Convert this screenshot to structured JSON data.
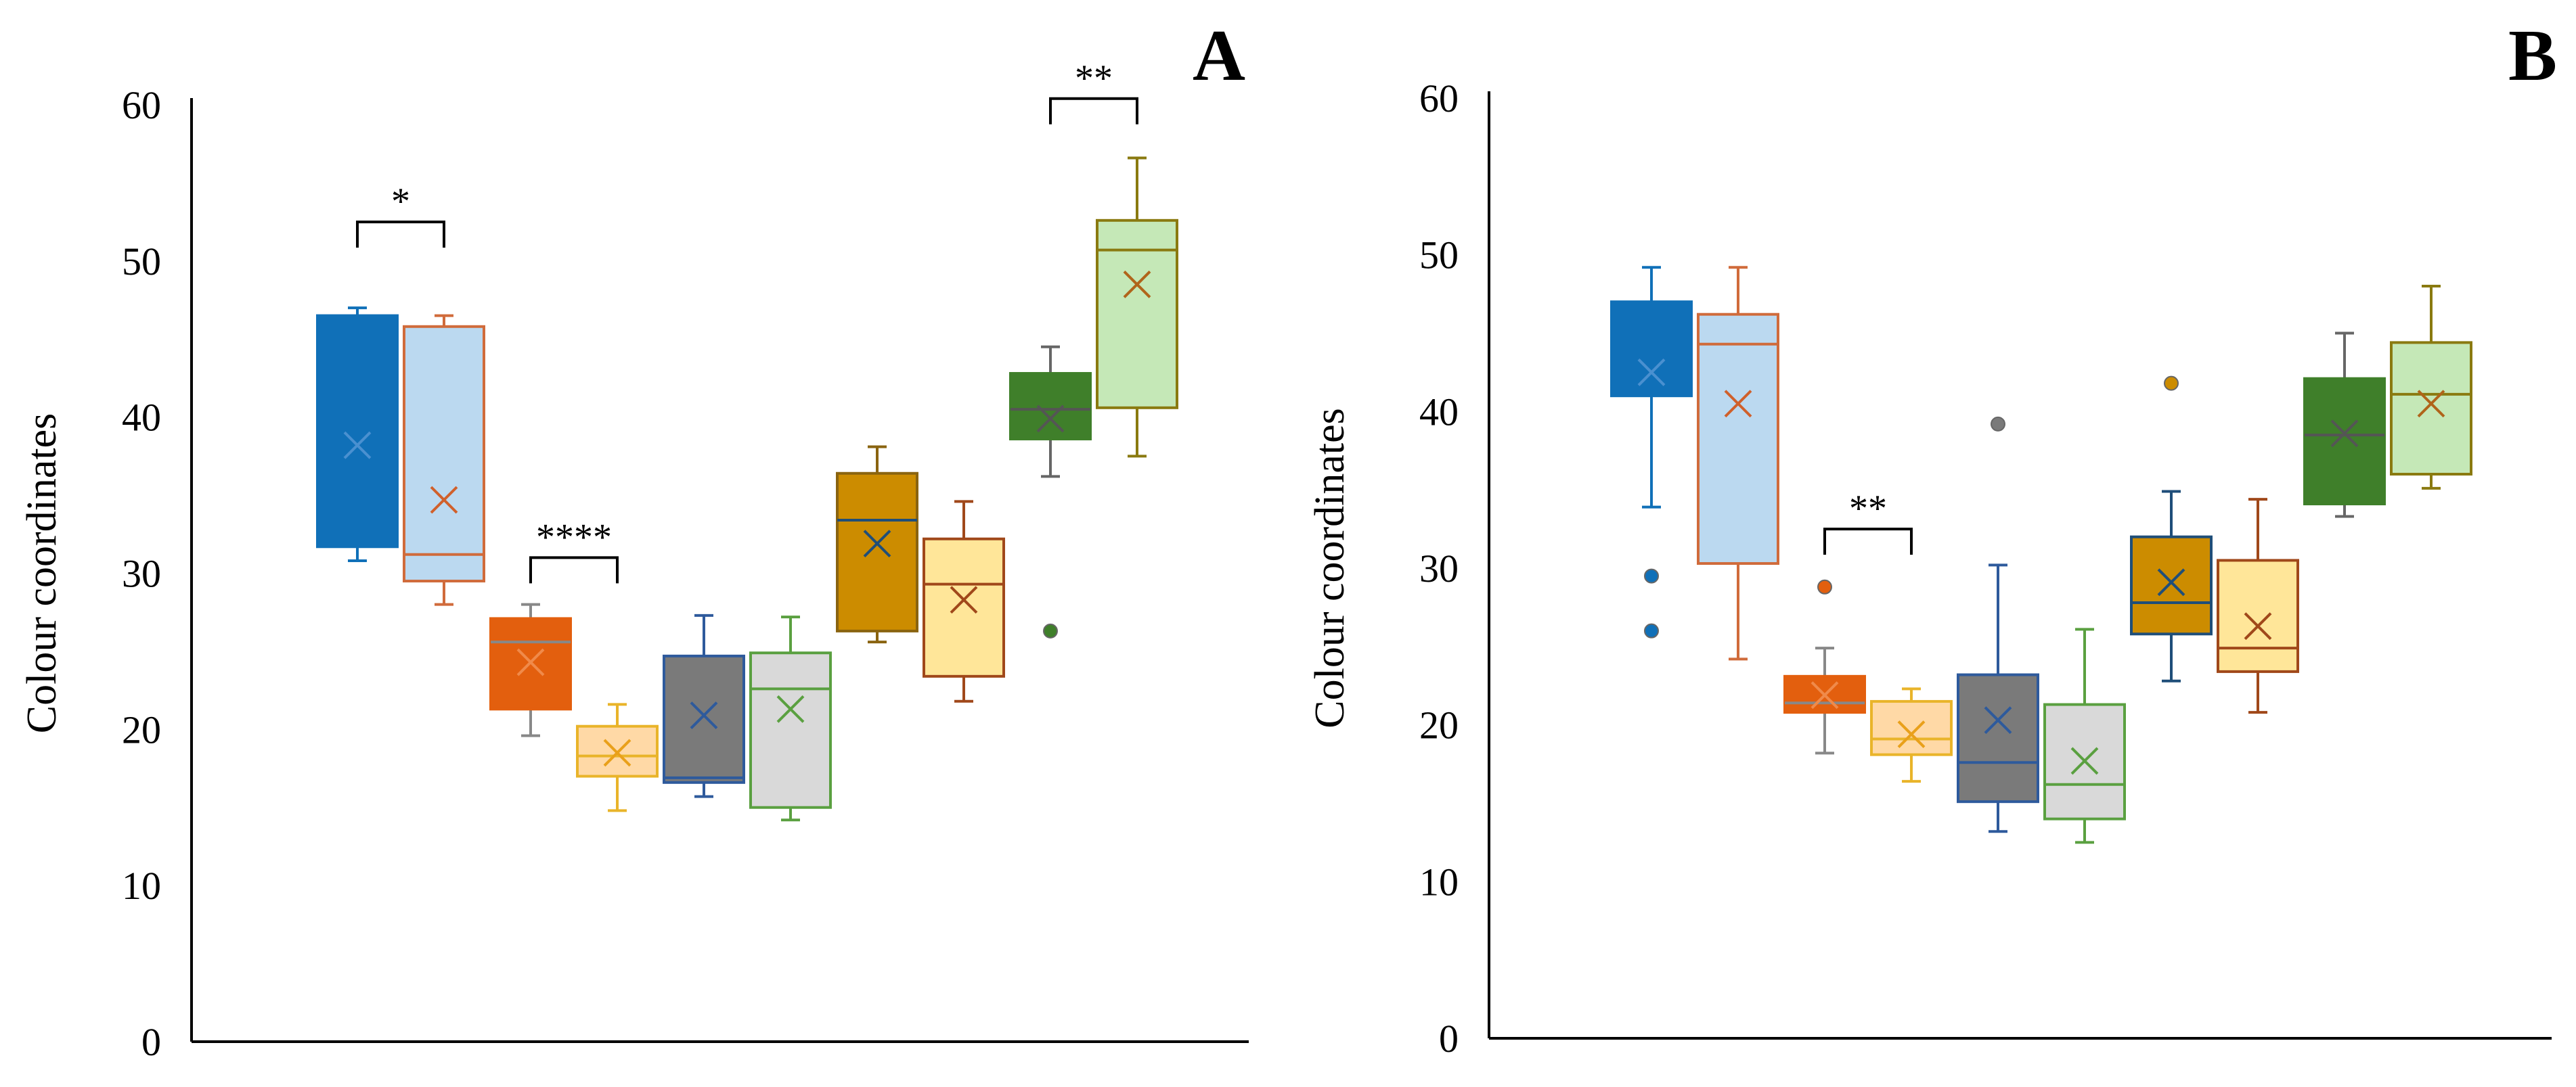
{
  "chart_data": [
    {
      "type": "boxplot",
      "panel": "A",
      "ylabel": "Colour coordinates",
      "ylim": [
        0,
        60
      ],
      "yticks": [
        0,
        10,
        20,
        30,
        40,
        50,
        60
      ],
      "grid": false,
      "groups": [
        {
          "fill": "#1070B8",
          "stroke": "#1070B8",
          "whisker": "#1070B8",
          "median_color": "#1070B8",
          "mean_color": "#4A90D0",
          "whisker_low": 30.8,
          "q1": 31.7,
          "median": 46.0,
          "q3": 46.5,
          "whisker_high": 47.0,
          "mean": 38.2,
          "outliers": []
        },
        {
          "fill": "#BBD9F0",
          "stroke": "#D06B3B",
          "whisker": "#D06B3B",
          "median_color": "#D06B3B",
          "mean_color": "#D0602B",
          "whisker_low": 28.0,
          "q1": 29.5,
          "median": 31.2,
          "q3": 45.8,
          "whisker_high": 46.5,
          "mean": 34.7,
          "outliers": []
        },
        {
          "fill": "#E35F0E",
          "stroke": "#E35F0E",
          "whisker": "#888888",
          "median_color": "#888888",
          "mean_color": "#F08A4A",
          "whisker_low": 19.6,
          "q1": 21.3,
          "median": 25.6,
          "q3": 27.1,
          "whisker_high": 28.0,
          "mean": 24.3,
          "outliers": []
        },
        {
          "fill": "#FFD9A6",
          "stroke": "#E9B42A",
          "whisker": "#E9B42A",
          "median_color": "#E9B42A",
          "mean_color": "#E9A01A",
          "whisker_low": 14.8,
          "q1": 17.0,
          "median": 18.3,
          "q3": 20.2,
          "whisker_high": 21.6,
          "mean": 18.5,
          "outliers": []
        },
        {
          "fill": "#7A7A7A",
          "stroke": "#2E5A9C",
          "whisker": "#2E5A9C",
          "median_color": "#2E5A9C",
          "mean_color": "#2E5A9C",
          "whisker_low": 15.7,
          "q1": 16.6,
          "median": 16.9,
          "q3": 24.7,
          "whisker_high": 27.3,
          "mean": 20.9,
          "outliers": []
        },
        {
          "fill": "#D9D9D9",
          "stroke": "#5AA040",
          "whisker": "#5AA040",
          "median_color": "#5AA040",
          "mean_color": "#5AA040",
          "whisker_low": 14.2,
          "q1": 15.0,
          "median": 22.6,
          "q3": 24.9,
          "whisker_high": 27.2,
          "mean": 21.3,
          "outliers": []
        },
        {
          "fill": "#CC8C00",
          "stroke": "#8A6410",
          "whisker": "#8A6410",
          "median_color": "#1F4E79",
          "mean_color": "#1F4E79",
          "whisker_low": 25.6,
          "q1": 26.3,
          "median": 33.4,
          "q3": 36.4,
          "whisker_high": 38.1,
          "mean": 31.9,
          "outliers": []
        },
        {
          "fill": "#FFE699",
          "stroke": "#A0481A",
          "whisker": "#A0481A",
          "median_color": "#A0481A",
          "mean_color": "#A0481A",
          "whisker_low": 21.8,
          "q1": 23.4,
          "median": 29.3,
          "q3": 32.2,
          "whisker_high": 34.6,
          "mean": 28.3,
          "outliers": []
        },
        {
          "fill": "#3F7F2A",
          "stroke": "#3F7F2A",
          "whisker": "#666666",
          "median_color": "#555555",
          "mean_color": "#555555",
          "whisker_low": 36.2,
          "q1": 38.6,
          "median": 40.5,
          "q3": 42.8,
          "whisker_high": 44.5,
          "mean": 39.9,
          "outliers": [
            26.3
          ]
        },
        {
          "fill": "#C5E8B7",
          "stroke": "#8A7A10",
          "whisker": "#8A7A10",
          "median_color": "#8A7A10",
          "mean_color": "#B0641A",
          "whisker_low": 37.5,
          "q1": 40.6,
          "median": 50.7,
          "q3": 52.6,
          "whisker_high": 56.6,
          "mean": 48.5,
          "outliers": []
        }
      ],
      "significance": [
        {
          "from": 0,
          "to": 1,
          "label": "*",
          "y": 52.5
        },
        {
          "from": 2,
          "to": 3,
          "label": "****",
          "y": 31.0
        },
        {
          "from": 8,
          "to": 9,
          "label": "**",
          "y": 60.4
        }
      ]
    },
    {
      "type": "boxplot",
      "panel": "B",
      "ylabel": "Colour coordinates",
      "ylim": [
        0,
        60
      ],
      "yticks": [
        0,
        10,
        20,
        30,
        40,
        50,
        60
      ],
      "grid": false,
      "groups": [
        {
          "fill": "#1070B8",
          "stroke": "#1070B8",
          "whisker": "#1070B8",
          "median_color": "#1070B8",
          "mean_color": "#4A90D0",
          "whisker_low": 33.9,
          "q1": 41.0,
          "median": 44.8,
          "q3": 47.0,
          "whisker_high": 49.2,
          "mean": 42.5,
          "outliers": [
            29.5,
            26.0
          ]
        },
        {
          "fill": "#BBD9F0",
          "stroke": "#D06B3B",
          "whisker": "#D06B3B",
          "median_color": "#D06B3B",
          "mean_color": "#D0602B",
          "whisker_low": 24.2,
          "q1": 30.3,
          "median": 44.3,
          "q3": 46.2,
          "whisker_high": 49.2,
          "mean": 40.5,
          "outliers": []
        },
        {
          "fill": "#E35F0E",
          "stroke": "#E35F0E",
          "whisker": "#888888",
          "median_color": "#888888",
          "mean_color": "#F08A4A",
          "whisker_low": 18.2,
          "q1": 20.8,
          "median": 21.4,
          "q3": 23.1,
          "whisker_high": 24.9,
          "mean": 21.9,
          "outliers": [
            28.8
          ]
        },
        {
          "fill": "#FFD9A6",
          "stroke": "#E9B42A",
          "whisker": "#E9B42A",
          "median_color": "#E9B42A",
          "mean_color": "#E9A01A",
          "whisker_low": 16.4,
          "q1": 18.1,
          "median": 19.1,
          "q3": 21.5,
          "whisker_high": 22.3,
          "mean": 19.4,
          "outliers": []
        },
        {
          "fill": "#7A7A7A",
          "stroke": "#2E5A9C",
          "whisker": "#2E5A9C",
          "median_color": "#2E5A9C",
          "mean_color": "#2E5A9C",
          "whisker_low": 13.2,
          "q1": 15.1,
          "median": 17.6,
          "q3": 23.2,
          "whisker_high": 30.2,
          "mean": 20.3,
          "outliers": [
            39.2
          ]
        },
        {
          "fill": "#D9D9D9",
          "stroke": "#5AA040",
          "whisker": "#5AA040",
          "median_color": "#5AA040",
          "mean_color": "#5AA040",
          "whisker_low": 12.5,
          "q1": 14.0,
          "median": 16.2,
          "q3": 21.3,
          "whisker_high": 26.1,
          "mean": 17.7,
          "outliers": []
        },
        {
          "fill": "#CC8C00",
          "stroke": "#1F4E79",
          "whisker": "#1F4E79",
          "median_color": "#1F4E79",
          "mean_color": "#1F4E79",
          "whisker_low": 22.8,
          "q1": 25.8,
          "median": 27.8,
          "q3": 32.0,
          "whisker_high": 34.9,
          "mean": 29.1,
          "outliers": [
            41.8
          ]
        },
        {
          "fill": "#FFE699",
          "stroke": "#A0481A",
          "whisker": "#A0481A",
          "median_color": "#A0481A",
          "mean_color": "#A0481A",
          "whisker_low": 20.8,
          "q1": 23.4,
          "median": 24.9,
          "q3": 30.5,
          "whisker_high": 34.4,
          "mean": 26.3,
          "outliers": []
        },
        {
          "fill": "#3F7F2A",
          "stroke": "#3F7F2A",
          "whisker": "#666666",
          "median_color": "#555555",
          "mean_color": "#555555",
          "whisker_low": 33.3,
          "q1": 34.1,
          "median": 38.5,
          "q3": 42.1,
          "whisker_high": 45.0,
          "mean": 38.6,
          "outliers": []
        },
        {
          "fill": "#C5E8B7",
          "stroke": "#8A7A10",
          "whisker": "#8A7A10",
          "median_color": "#8A7A10",
          "mean_color": "#B0641A",
          "whisker_low": 35.1,
          "q1": 36.0,
          "median": 41.1,
          "q3": 44.4,
          "whisker_high": 48.0,
          "mean": 40.5,
          "outliers": []
        }
      ],
      "significance": [
        {
          "from": 2,
          "to": 3,
          "label": "**",
          "y": 32.5
        }
      ]
    }
  ]
}
